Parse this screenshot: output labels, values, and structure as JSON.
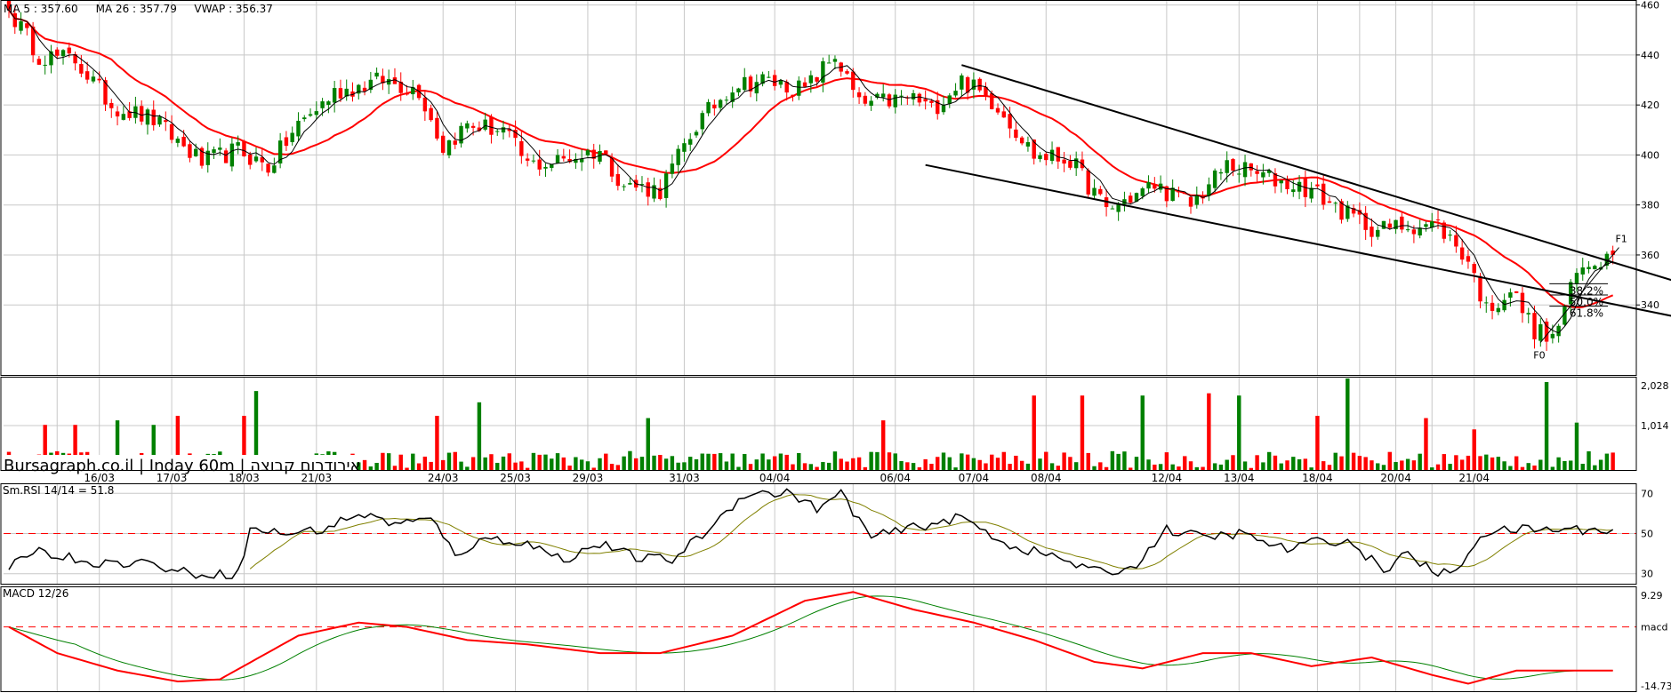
{
  "chart_data": [
    {
      "type": "candlestick",
      "legend": [
        {
          "text": "MA 5 : 357.60",
          "color": "#000000"
        },
        {
          "text": "MA 26 : 357.79",
          "color": "#ff0000"
        },
        {
          "text": "VWAP : 356.37",
          "color": "#000000"
        }
      ],
      "ylim": [
        312,
        462
      ],
      "yticks": [
        340,
        360,
        380,
        400,
        420,
        440,
        460
      ],
      "colors": {
        "up": "#008000",
        "down": "#ff0000",
        "ma26": "#ff0000",
        "ma5": "#000000"
      },
      "anchor_closes": [
        {
          "i": 0,
          "v": 458
        },
        {
          "i": 5,
          "v": 440
        },
        {
          "i": 11,
          "v": 438
        },
        {
          "i": 17,
          "v": 420
        },
        {
          "i": 24,
          "v": 414
        },
        {
          "i": 32,
          "v": 397
        },
        {
          "i": 38,
          "v": 402
        },
        {
          "i": 43,
          "v": 395
        },
        {
          "i": 48,
          "v": 412
        },
        {
          "i": 54,
          "v": 425
        },
        {
          "i": 62,
          "v": 430
        },
        {
          "i": 68,
          "v": 426
        },
        {
          "i": 72,
          "v": 403
        },
        {
          "i": 76,
          "v": 412
        },
        {
          "i": 82,
          "v": 410
        },
        {
          "i": 86,
          "v": 396
        },
        {
          "i": 90,
          "v": 397
        },
        {
          "i": 98,
          "v": 402
        },
        {
          "i": 102,
          "v": 388
        },
        {
          "i": 108,
          "v": 386
        },
        {
          "i": 114,
          "v": 412
        },
        {
          "i": 120,
          "v": 428
        },
        {
          "i": 125,
          "v": 430
        },
        {
          "i": 132,
          "v": 426
        },
        {
          "i": 137,
          "v": 440
        },
        {
          "i": 141,
          "v": 420
        },
        {
          "i": 150,
          "v": 423
        },
        {
          "i": 153,
          "v": 418
        },
        {
          "i": 158,
          "v": 430
        },
        {
          "i": 164,
          "v": 420
        },
        {
          "i": 170,
          "v": 400
        },
        {
          "i": 176,
          "v": 398
        },
        {
          "i": 182,
          "v": 378
        },
        {
          "i": 190,
          "v": 388
        },
        {
          "i": 196,
          "v": 380
        },
        {
          "i": 202,
          "v": 396
        },
        {
          "i": 210,
          "v": 390
        },
        {
          "i": 216,
          "v": 386
        },
        {
          "i": 222,
          "v": 376
        },
        {
          "i": 227,
          "v": 370
        },
        {
          "i": 232,
          "v": 372
        },
        {
          "i": 237,
          "v": 372
        },
        {
          "i": 242,
          "v": 358
        },
        {
          "i": 245,
          "v": 338
        },
        {
          "i": 249,
          "v": 346
        },
        {
          "i": 253,
          "v": 330
        },
        {
          "i": 256,
          "v": 326
        },
        {
          "i": 260,
          "v": 352
        },
        {
          "i": 263,
          "v": 358
        },
        {
          "i": 266,
          "v": 360
        }
      ],
      "trendlines": [
        {
          "from": {
            "i": 158,
            "v": 436
          },
          "to": {
            "i": 277,
            "v": 349
          }
        },
        {
          "from": {
            "i": 152,
            "v": 396
          },
          "to": {
            "i": 277,
            "v": 335
          }
        }
      ],
      "fibonacci": {
        "levels": [
          "38.2%",
          "50.0%",
          "61.8%"
        ],
        "low": 325,
        "high": 363,
        "low_label": "F0",
        "high_label": "F1"
      }
    },
    {
      "type": "bar",
      "name": "volume",
      "ylim": [
        0,
        2028
      ],
      "yticks": [
        "2,028",
        "1,014"
      ],
      "overlay_text": "Bursagraph.co.il | Inday 60m | אירודרום קבוצה",
      "date_labels": [
        {
          "i": 15,
          "text": "16/03"
        },
        {
          "i": 27,
          "text": "17/03"
        },
        {
          "i": 39,
          "text": "18/03"
        },
        {
          "i": 51,
          "text": "21/03"
        },
        {
          "i": 72,
          "text": "24/03"
        },
        {
          "i": 84,
          "text": "25/03"
        },
        {
          "i": 96,
          "text": "29/03"
        },
        {
          "i": 112,
          "text": "31/03"
        },
        {
          "i": 127,
          "text": "04/04"
        },
        {
          "i": 147,
          "text": "06/04"
        },
        {
          "i": 160,
          "text": "07/04"
        },
        {
          "i": 172,
          "text": "08/04"
        },
        {
          "i": 192,
          "text": "12/04"
        },
        {
          "i": 204,
          "text": "13/04"
        },
        {
          "i": 217,
          "text": "18/04"
        },
        {
          "i": 230,
          "text": "20/04"
        },
        {
          "i": 243,
          "text": "21/04"
        }
      ],
      "tall_bars": [
        {
          "i": 6,
          "v": 1000,
          "up": false
        },
        {
          "i": 11,
          "v": 1000,
          "up": false
        },
        {
          "i": 18,
          "v": 1100,
          "up": true
        },
        {
          "i": 24,
          "v": 1000,
          "up": true
        },
        {
          "i": 28,
          "v": 1200,
          "up": false
        },
        {
          "i": 39,
          "v": 1200,
          "up": false
        },
        {
          "i": 41,
          "v": 1750,
          "up": true
        },
        {
          "i": 71,
          "v": 1200,
          "up": false
        },
        {
          "i": 78,
          "v": 1500,
          "up": true
        },
        {
          "i": 106,
          "v": 1150,
          "up": true
        },
        {
          "i": 145,
          "v": 1100,
          "up": false
        },
        {
          "i": 170,
          "v": 1650,
          "up": false
        },
        {
          "i": 178,
          "v": 1650,
          "up": false
        },
        {
          "i": 188,
          "v": 1650,
          "up": true
        },
        {
          "i": 199,
          "v": 1700,
          "up": false
        },
        {
          "i": 204,
          "v": 1650,
          "up": true
        },
        {
          "i": 217,
          "v": 1200,
          "up": false
        },
        {
          "i": 222,
          "v": 2028,
          "up": true
        },
        {
          "i": 235,
          "v": 1150,
          "up": false
        },
        {
          "i": 243,
          "v": 900,
          "up": false
        },
        {
          "i": 255,
          "v": 1950,
          "up": true
        },
        {
          "i": 260,
          "v": 1050,
          "up": true
        }
      ]
    },
    {
      "type": "line",
      "name": "rsi",
      "legend": "Sm.RSI 14/14 = 51.8",
      "ylim": [
        25,
        75
      ],
      "yticks": [
        70,
        50,
        30
      ],
      "reference": 50,
      "anchors": [
        {
          "i": 0,
          "v": 32
        },
        {
          "i": 4,
          "v": 42
        },
        {
          "i": 10,
          "v": 38
        },
        {
          "i": 16,
          "v": 35
        },
        {
          "i": 22,
          "v": 36
        },
        {
          "i": 30,
          "v": 30
        },
        {
          "i": 38,
          "v": 30
        },
        {
          "i": 40,
          "v": 52
        },
        {
          "i": 46,
          "v": 50
        },
        {
          "i": 52,
          "v": 52
        },
        {
          "i": 58,
          "v": 60
        },
        {
          "i": 64,
          "v": 55
        },
        {
          "i": 70,
          "v": 57
        },
        {
          "i": 74,
          "v": 40
        },
        {
          "i": 80,
          "v": 48
        },
        {
          "i": 86,
          "v": 45
        },
        {
          "i": 92,
          "v": 37
        },
        {
          "i": 98,
          "v": 45
        },
        {
          "i": 104,
          "v": 38
        },
        {
          "i": 110,
          "v": 37
        },
        {
          "i": 116,
          "v": 52
        },
        {
          "i": 122,
          "v": 70
        },
        {
          "i": 130,
          "v": 70
        },
        {
          "i": 134,
          "v": 62
        },
        {
          "i": 138,
          "v": 70
        },
        {
          "i": 143,
          "v": 48
        },
        {
          "i": 150,
          "v": 53
        },
        {
          "i": 158,
          "v": 58
        },
        {
          "i": 166,
          "v": 44
        },
        {
          "i": 174,
          "v": 38
        },
        {
          "i": 180,
          "v": 31
        },
        {
          "i": 186,
          "v": 32
        },
        {
          "i": 192,
          "v": 52
        },
        {
          "i": 198,
          "v": 48
        },
        {
          "i": 204,
          "v": 50
        },
        {
          "i": 212,
          "v": 42
        },
        {
          "i": 218,
          "v": 47
        },
        {
          "i": 222,
          "v": 46
        },
        {
          "i": 228,
          "v": 32
        },
        {
          "i": 232,
          "v": 40
        },
        {
          "i": 236,
          "v": 31
        },
        {
          "i": 240,
          "v": 30
        },
        {
          "i": 244,
          "v": 50
        },
        {
          "i": 250,
          "v": 52
        }
      ]
    },
    {
      "type": "line",
      "name": "macd",
      "legend": "MACD 12/26",
      "ylim": [
        -14.73,
        9.29
      ],
      "yticks": [
        "9.29",
        "macd",
        "-14.73"
      ],
      "reference": 0,
      "anchors": [
        {
          "i": 0,
          "v": 0
        },
        {
          "i": 8,
          "v": -6
        },
        {
          "i": 18,
          "v": -10
        },
        {
          "i": 28,
          "v": -12.5
        },
        {
          "i": 35,
          "v": -12
        },
        {
          "i": 48,
          "v": -2
        },
        {
          "i": 58,
          "v": 1
        },
        {
          "i": 66,
          "v": 0
        },
        {
          "i": 76,
          "v": -3
        },
        {
          "i": 86,
          "v": -4
        },
        {
          "i": 98,
          "v": -6
        },
        {
          "i": 108,
          "v": -6
        },
        {
          "i": 120,
          "v": -2
        },
        {
          "i": 132,
          "v": 6
        },
        {
          "i": 140,
          "v": 8
        },
        {
          "i": 150,
          "v": 4
        },
        {
          "i": 160,
          "v": 1
        },
        {
          "i": 170,
          "v": -3
        },
        {
          "i": 180,
          "v": -8
        },
        {
          "i": 188,
          "v": -9.5
        },
        {
          "i": 198,
          "v": -6
        },
        {
          "i": 206,
          "v": -6
        },
        {
          "i": 216,
          "v": -9
        },
        {
          "i": 226,
          "v": -7
        },
        {
          "i": 236,
          "v": -11
        },
        {
          "i": 242,
          "v": -13
        },
        {
          "i": 250,
          "v": -10
        }
      ]
    }
  ]
}
